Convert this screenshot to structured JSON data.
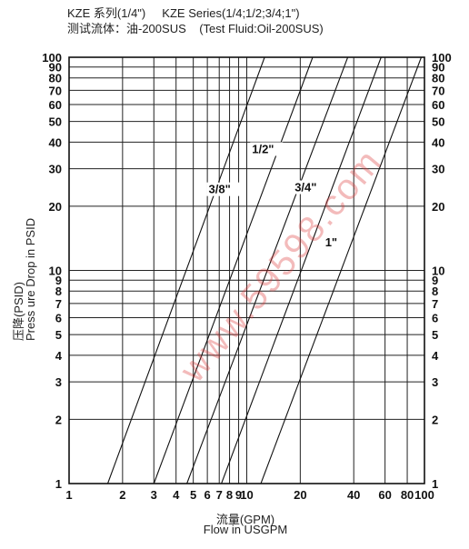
{
  "header": {
    "line1": "KZE 系列(1/4\")     KZE Series(1/4;1/2;3/4;1\")",
    "line2": "测试流体：油-200SUS    (Test Fluid:Oil-200SUS)"
  },
  "watermark": "www.59598.com",
  "chart_data": {
    "type": "line",
    "xscale": "log",
    "yscale": "log",
    "xlim": [
      1,
      100
    ],
    "ylim": [
      1,
      100
    ],
    "grid": true,
    "xlabel_cn": "流量(GPM)",
    "xlabel_en": "Flow in USGPM",
    "ylabel_cn": "压降(PSID)",
    "ylabel_en": "Press ure Drop in PSID",
    "x_ticks": [
      1,
      2,
      3,
      4,
      5,
      6,
      7,
      8,
      9,
      10,
      20,
      40,
      60,
      80,
      100
    ],
    "x_tick_labels": [
      "1",
      "2",
      "3",
      "4",
      "5",
      "6",
      "7",
      "8",
      "9",
      "10",
      "20",
      "40",
      "60",
      "80",
      "100"
    ],
    "y_ticks": [
      1,
      2,
      3,
      4,
      5,
      6,
      7,
      8,
      9,
      10,
      20,
      30,
      40,
      50,
      60,
      70,
      80,
      90,
      100
    ],
    "y_tick_labels": [
      "1",
      "2",
      "3",
      "4",
      "5",
      "6",
      "7",
      "8",
      "9",
      "10",
      "20",
      "30",
      "40",
      "50",
      "60",
      "70",
      "80",
      "90",
      "100"
    ],
    "series": [
      {
        "name": "",
        "x": [
          1.65,
          12.6
        ],
        "y": [
          1,
          100
        ]
      },
      {
        "name": "3/8\"",
        "x": [
          3.0,
          23.5
        ],
        "y": [
          1,
          100
        ]
      },
      {
        "name": "1/2\"",
        "x": [
          4.6,
          37
        ],
        "y": [
          1,
          100
        ]
      },
      {
        "name": "3/4\"",
        "x": [
          7.2,
          57
        ],
        "y": [
          1,
          100
        ]
      },
      {
        "name": "1\"",
        "x": [
          12.0,
          96
        ],
        "y": [
          1,
          100
        ]
      }
    ],
    "annotations": [
      {
        "text": "3/8\"",
        "x": 6.1,
        "y": 23
      },
      {
        "text": "1/2\"",
        "x": 10.7,
        "y": 35.5
      },
      {
        "text": "3/4\"",
        "x": 18.6,
        "y": 23.5
      },
      {
        "text": "1\"",
        "x": 27.6,
        "y": 13
      }
    ]
  }
}
